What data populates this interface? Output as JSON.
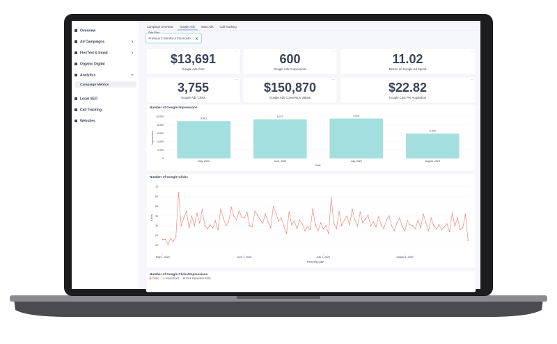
{
  "sidebar": {
    "items": [
      "Overview",
      "Ad Campaigns",
      "FlexText & Email",
      "Organic Digital",
      "Analytics"
    ],
    "sub_item": "Campaign Metrics",
    "items_after": [
      "Local SEO",
      "Call Tracking",
      "Websites"
    ]
  },
  "tabs": [
    "Campaign Overview",
    "Google Ads",
    "Meta Ads",
    "Call Tracking"
  ],
  "date_filter": {
    "label": "Date Filter",
    "value": "Previous 3 months or this month"
  },
  "kpis": [
    {
      "value": "$13,691",
      "label": "Google Ads Cost"
    },
    {
      "value": "600",
      "label": "Google Ads Conversions"
    },
    {
      "value": "11.02",
      "label": "Return on Google Ad Spend"
    },
    {
      "value": "3,755",
      "label": "Google Ads Clicks"
    },
    {
      "value": "$150,870",
      "label": "Google Ads Conversion Values"
    },
    {
      "value": "$22.82",
      "label": "Google Cost Per Acquisition"
    }
  ],
  "impressions_chart": {
    "type": "bar",
    "title": "Number of Google Impressions",
    "categories": [
      "May, 2020",
      "June, 2020",
      "July, 2020",
      "August, 2020"
    ],
    "values": [
      8961,
      9377,
      9576,
      5949
    ],
    "value_labels": [
      "8,961",
      "9,377",
      "9,576",
      "5,949"
    ],
    "color": "#a3dfdf",
    "ylim": [
      0,
      10000
    ],
    "yticks": [
      0,
      {
        "value": 2000,
        "label": "2,000"
      },
      {
        "value": 4000,
        "label": "4,000"
      },
      {
        "value": 6000,
        "label": "6,000"
      },
      {
        "value": 8000,
        "label": "8,000"
      },
      {
        "value": 10000,
        "label": "10,000"
      }
    ],
    "y_label": "Impressions",
    "x_label": "Date"
  },
  "clicks_chart": {
    "type": "line",
    "title": "Number of Google Clicks",
    "color": "#f08a7e",
    "values": [
      16,
      16,
      11,
      17,
      14,
      19,
      64,
      30,
      38,
      45,
      28,
      40,
      30,
      43,
      33,
      47,
      30,
      27,
      31,
      28,
      35,
      26,
      47,
      38,
      30,
      34,
      49,
      40,
      36,
      45,
      39,
      38,
      44,
      30,
      29,
      45,
      41,
      36,
      33,
      42,
      34,
      28,
      50,
      43,
      35,
      38,
      30,
      22,
      44,
      31,
      35,
      27,
      36,
      32,
      25,
      29,
      26,
      47,
      31,
      25,
      33,
      27,
      30,
      22,
      59,
      33,
      27,
      45,
      30,
      36,
      40,
      31,
      47,
      36,
      30,
      44,
      33,
      37,
      41,
      30,
      34,
      29,
      39,
      31,
      27,
      36,
      40,
      30,
      25,
      33,
      38,
      29,
      25,
      35,
      31,
      30,
      27,
      36,
      28,
      42,
      33,
      25,
      38,
      30,
      27,
      31,
      26,
      29,
      32,
      24,
      43,
      30,
      38,
      26,
      28,
      42,
      15
    ],
    "xlim": [
      -1,
      117
    ],
    "xticks": [
      {
        "value": 0,
        "label": "May 1, 2020"
      },
      {
        "value": 31,
        "label": "June 1, 2020"
      },
      {
        "value": 61,
        "label": "July 1, 2020"
      },
      {
        "value": 92,
        "label": "August 1, 2020"
      }
    ],
    "ylim": [
      5,
      72
    ],
    "yticks": [
      10,
      20,
      30,
      40,
      50,
      60,
      70
    ],
    "y_label": "Clicks",
    "x_label": "Reporting Date"
  },
  "ratio_chart": {
    "title": "Number of Google Clicks/Impressions",
    "legend": [
      {
        "name": "Clicks",
        "color": "#f08a7e"
      },
      {
        "name": "Impressions",
        "color": "#f5c85a"
      },
      {
        "name": "Click Impression Ratio",
        "color": "#9b8fd8"
      }
    ]
  }
}
